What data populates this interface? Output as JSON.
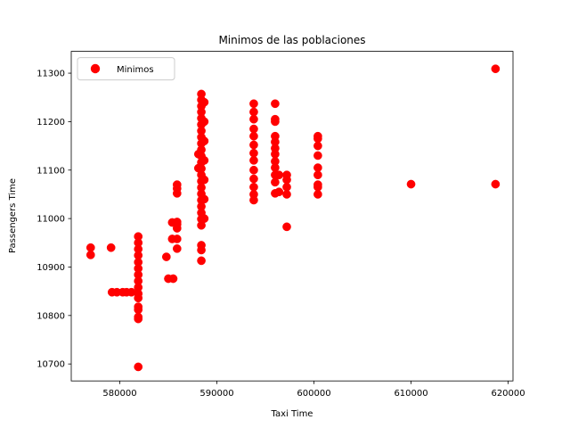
{
  "chart_data": {
    "type": "scatter",
    "title": "Minimos de las poblaciones",
    "xlabel": "Taxi Time",
    "ylabel": "Passengers Time",
    "xlim": [
      575000,
      620500
    ],
    "ylim": [
      10665,
      11345
    ],
    "xticks": [
      580000,
      590000,
      600000,
      610000,
      620000
    ],
    "xtick_labels": [
      "580000",
      "590000",
      "600000",
      "610000",
      "620000"
    ],
    "yticks": [
      10700,
      10800,
      10900,
      11000,
      11100,
      11200,
      11300
    ],
    "ytick_labels": [
      "10700",
      "10800",
      "10900",
      "11000",
      "11100",
      "11200",
      "11300"
    ],
    "grid": false,
    "legend_position": "upper-left",
    "series": [
      {
        "name": "Minimos",
        "color": "#ff0000",
        "points": [
          [
            577000,
            10940
          ],
          [
            577000,
            10925
          ],
          [
            579100,
            10940
          ],
          [
            579200,
            10848
          ],
          [
            579700,
            10848
          ],
          [
            580300,
            10848
          ],
          [
            580700,
            10848
          ],
          [
            581200,
            10848
          ],
          [
            581900,
            10963
          ],
          [
            581900,
            10950
          ],
          [
            581900,
            10937
          ],
          [
            581900,
            10924
          ],
          [
            581900,
            10910
          ],
          [
            581900,
            10897
          ],
          [
            581900,
            10884
          ],
          [
            581900,
            10871
          ],
          [
            581900,
            10858
          ],
          [
            581900,
            10845
          ],
          [
            581900,
            10836
          ],
          [
            581900,
            10818
          ],
          [
            581900,
            10812
          ],
          [
            581900,
            10797
          ],
          [
            581900,
            10793
          ],
          [
            581900,
            10694
          ],
          [
            584800,
            10921
          ],
          [
            585000,
            10876
          ],
          [
            585500,
            10876
          ],
          [
            585400,
            10992
          ],
          [
            585400,
            10958
          ],
          [
            585900,
            10993
          ],
          [
            585900,
            10988
          ],
          [
            585900,
            10980
          ],
          [
            585900,
            10958
          ],
          [
            585900,
            10938
          ],
          [
            585900,
            11070
          ],
          [
            585900,
            11062
          ],
          [
            585900,
            11052
          ],
          [
            588100,
            11133
          ],
          [
            588100,
            11104
          ],
          [
            588400,
            11257
          ],
          [
            588400,
            11245
          ],
          [
            588400,
            11232
          ],
          [
            588400,
            11220
          ],
          [
            588400,
            11207
          ],
          [
            588400,
            11194
          ],
          [
            588400,
            11181
          ],
          [
            588400,
            11168
          ],
          [
            588400,
            11155
          ],
          [
            588400,
            11142
          ],
          [
            588400,
            11129
          ],
          [
            588400,
            11116
          ],
          [
            588400,
            11103
          ],
          [
            588400,
            11090
          ],
          [
            588400,
            11077
          ],
          [
            588400,
            11064
          ],
          [
            588400,
            11051
          ],
          [
            588400,
            11038
          ],
          [
            588400,
            11025
          ],
          [
            588400,
            11012
          ],
          [
            588400,
            10999
          ],
          [
            588400,
            10986
          ],
          [
            588400,
            10945
          ],
          [
            588400,
            10935
          ],
          [
            588400,
            10913
          ],
          [
            588700,
            11240
          ],
          [
            588700,
            11200
          ],
          [
            588700,
            11160
          ],
          [
            588700,
            11120
          ],
          [
            588700,
            11080
          ],
          [
            588700,
            11040
          ],
          [
            588700,
            11000
          ],
          [
            593800,
            11237
          ],
          [
            593800,
            11220
          ],
          [
            593800,
            11205
          ],
          [
            593800,
            11185
          ],
          [
            593800,
            11170
          ],
          [
            593800,
            11152
          ],
          [
            593800,
            11135
          ],
          [
            593800,
            11120
          ],
          [
            593800,
            11100
          ],
          [
            593800,
            11082
          ],
          [
            593800,
            11065
          ],
          [
            593800,
            11050
          ],
          [
            593800,
            11038
          ],
          [
            596000,
            11237
          ],
          [
            596000,
            11205
          ],
          [
            596000,
            11200
          ],
          [
            596000,
            11170
          ],
          [
            596000,
            11158
          ],
          [
            596000,
            11145
          ],
          [
            596000,
            11133
          ],
          [
            596000,
            11118
          ],
          [
            596000,
            11105
          ],
          [
            596000,
            11090
          ],
          [
            596000,
            11075
          ],
          [
            596000,
            11052
          ],
          [
            596400,
            11090
          ],
          [
            596400,
            11055
          ],
          [
            597200,
            11090
          ],
          [
            597200,
            11080
          ],
          [
            597200,
            11065
          ],
          [
            597200,
            11050
          ],
          [
            597200,
            10983
          ],
          [
            600400,
            11170
          ],
          [
            600400,
            11165
          ],
          [
            600400,
            11150
          ],
          [
            600400,
            11130
          ],
          [
            600400,
            11105
          ],
          [
            600400,
            11090
          ],
          [
            600400,
            11070
          ],
          [
            600400,
            11065
          ],
          [
            600400,
            11050
          ],
          [
            610000,
            11071
          ],
          [
            618700,
            11309
          ],
          [
            618700,
            11071
          ]
        ]
      }
    ]
  }
}
